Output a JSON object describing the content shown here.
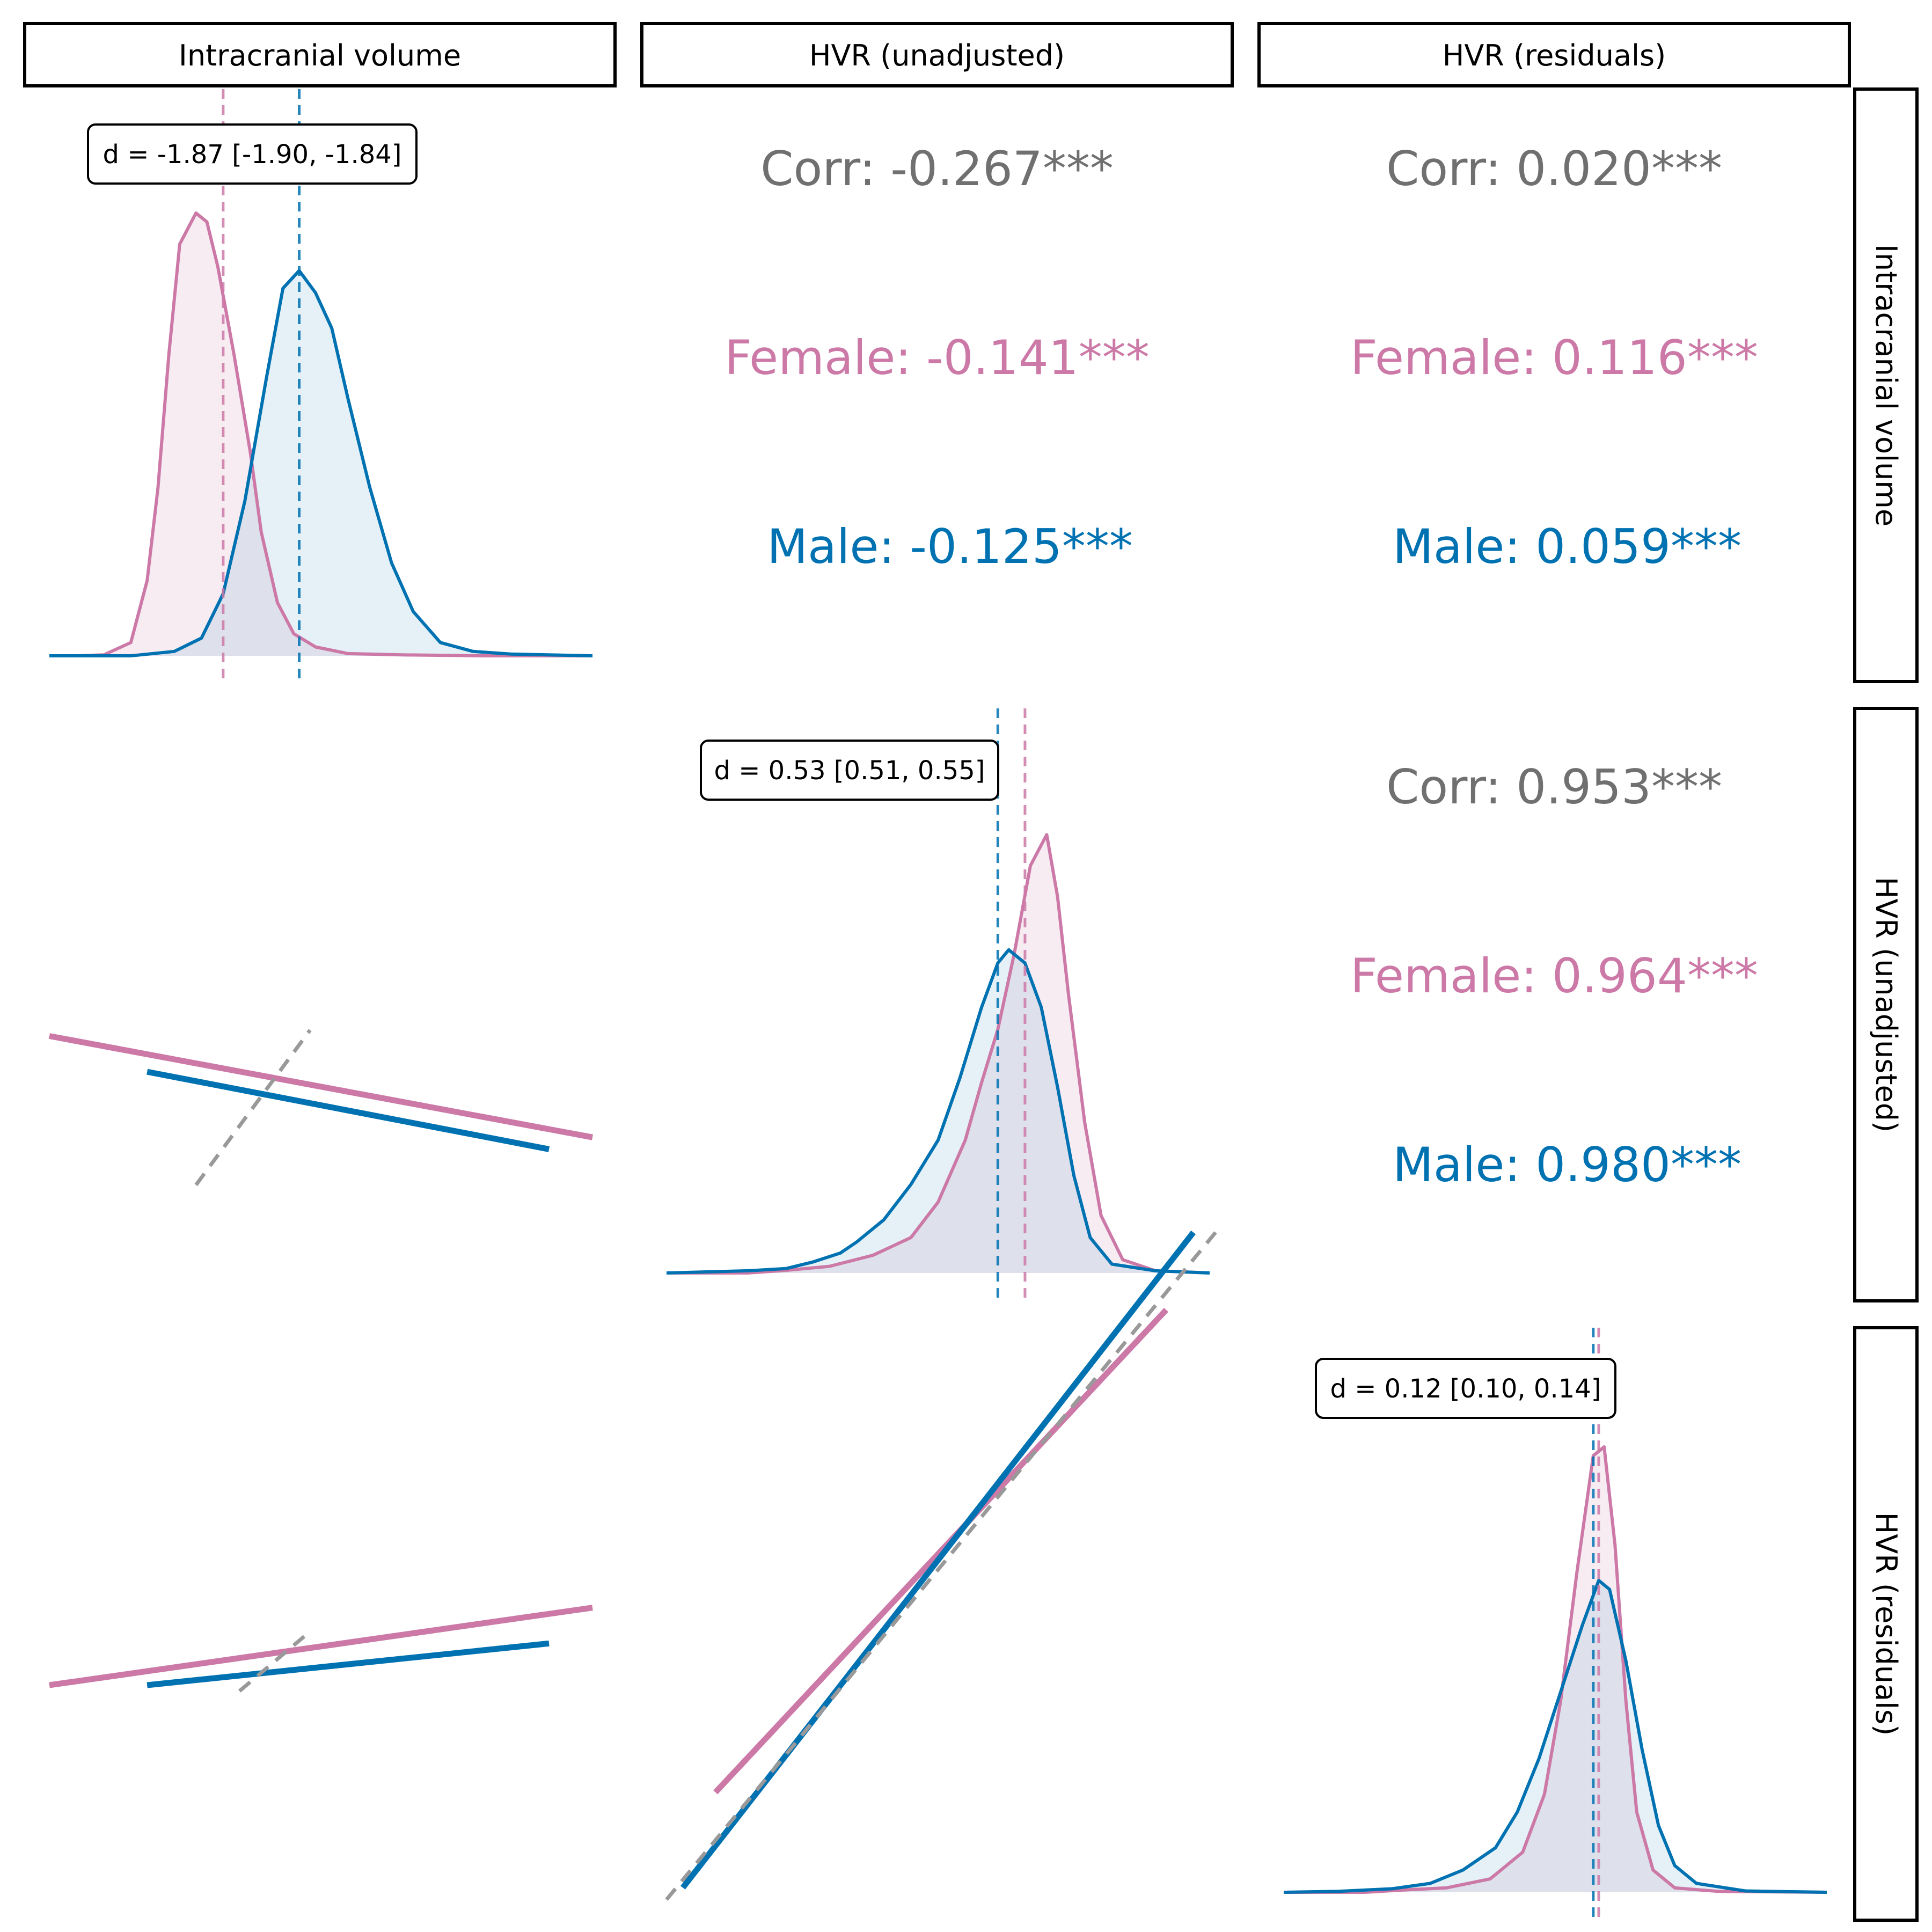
{
  "chart_data": {
    "type": "pair-plot",
    "variables": [
      "Intracranial volume",
      "HVR (unadjusted)",
      "HVR (residuals)"
    ],
    "row_labels": [
      "Intracranial volume",
      "HVR (unadjusted)",
      "HVR (residuals)"
    ],
    "groups": [
      {
        "name": "Female",
        "color": "#cc79a7"
      },
      {
        "name": "Male",
        "color": "#0072b2"
      }
    ],
    "overall_color": "#707070",
    "diagonal": [
      {
        "variable": "Intracranial volume",
        "cohens_d": "d = -1.87 [-1.90, -1.84]",
        "female_mean": 0.32,
        "male_mean": 0.46,
        "female_density": [
          [
            0.0,
            0
          ],
          [
            0.05,
            0.0
          ],
          [
            0.1,
            0.002
          ],
          [
            0.15,
            0.03
          ],
          [
            0.18,
            0.17
          ],
          [
            0.2,
            0.38
          ],
          [
            0.22,
            0.68
          ],
          [
            0.24,
            0.93
          ],
          [
            0.27,
            1.0
          ],
          [
            0.29,
            0.98
          ],
          [
            0.31,
            0.88
          ],
          [
            0.34,
            0.68
          ],
          [
            0.37,
            0.46
          ],
          [
            0.39,
            0.28
          ],
          [
            0.42,
            0.12
          ],
          [
            0.45,
            0.05
          ],
          [
            0.49,
            0.02
          ],
          [
            0.55,
            0.005
          ],
          [
            0.65,
            0.002
          ],
          [
            0.8,
            0.0
          ],
          [
            1.0,
            0
          ]
        ],
        "male_density": [
          [
            0.0,
            0
          ],
          [
            0.15,
            0.0
          ],
          [
            0.23,
            0.01
          ],
          [
            0.28,
            0.04
          ],
          [
            0.32,
            0.14
          ],
          [
            0.36,
            0.35
          ],
          [
            0.4,
            0.63
          ],
          [
            0.43,
            0.83
          ],
          [
            0.46,
            0.87
          ],
          [
            0.49,
            0.82
          ],
          [
            0.52,
            0.74
          ],
          [
            0.55,
            0.58
          ],
          [
            0.59,
            0.38
          ],
          [
            0.63,
            0.21
          ],
          [
            0.67,
            0.1
          ],
          [
            0.72,
            0.03
          ],
          [
            0.78,
            0.01
          ],
          [
            0.85,
            0.004
          ],
          [
            1.0,
            0
          ]
        ]
      },
      {
        "variable": "HVR (unadjusted)",
        "cohens_d": "d = 0.53 [0.51, 0.55]",
        "female_mean": 0.66,
        "male_mean": 0.61,
        "female_density": [
          [
            0.0,
            0
          ],
          [
            0.15,
            0.0
          ],
          [
            0.22,
            0.006
          ],
          [
            0.3,
            0.015
          ],
          [
            0.38,
            0.04
          ],
          [
            0.45,
            0.08
          ],
          [
            0.5,
            0.16
          ],
          [
            0.55,
            0.3
          ],
          [
            0.58,
            0.43
          ],
          [
            0.61,
            0.55
          ],
          [
            0.64,
            0.72
          ],
          [
            0.67,
            0.92
          ],
          [
            0.7,
            0.99
          ],
          [
            0.72,
            0.85
          ],
          [
            0.74,
            0.63
          ],
          [
            0.77,
            0.34
          ],
          [
            0.8,
            0.13
          ],
          [
            0.84,
            0.03
          ],
          [
            0.9,
            0.005
          ],
          [
            1.0,
            0
          ]
        ],
        "male_density": [
          [
            0.0,
            0
          ],
          [
            0.15,
            0.005
          ],
          [
            0.22,
            0.01
          ],
          [
            0.27,
            0.025
          ],
          [
            0.32,
            0.045
          ],
          [
            0.35,
            0.07
          ],
          [
            0.4,
            0.12
          ],
          [
            0.45,
            0.2
          ],
          [
            0.5,
            0.3
          ],
          [
            0.54,
            0.44
          ],
          [
            0.58,
            0.6
          ],
          [
            0.61,
            0.7
          ],
          [
            0.63,
            0.73
          ],
          [
            0.66,
            0.7
          ],
          [
            0.69,
            0.6
          ],
          [
            0.72,
            0.42
          ],
          [
            0.75,
            0.22
          ],
          [
            0.78,
            0.08
          ],
          [
            0.82,
            0.02
          ],
          [
            0.9,
            0.005
          ],
          [
            1.0,
            0
          ]
        ]
      },
      {
        "variable": "HVR (residuals)",
        "cohens_d": "d = 0.12 [0.10, 0.14]",
        "female_mean": 0.58,
        "male_mean": 0.57,
        "female_density": [
          [
            0.0,
            0
          ],
          [
            0.15,
            0.0
          ],
          [
            0.22,
            0.005
          ],
          [
            0.3,
            0.01
          ],
          [
            0.38,
            0.03
          ],
          [
            0.44,
            0.09
          ],
          [
            0.48,
            0.22
          ],
          [
            0.51,
            0.43
          ],
          [
            0.54,
            0.72
          ],
          [
            0.57,
            0.98
          ],
          [
            0.59,
            1.0
          ],
          [
            0.61,
            0.78
          ],
          [
            0.63,
            0.43
          ],
          [
            0.65,
            0.18
          ],
          [
            0.68,
            0.05
          ],
          [
            0.72,
            0.01
          ],
          [
            0.8,
            0.002
          ],
          [
            1.0,
            0
          ]
        ],
        "male_density": [
          [
            0.0,
            0
          ],
          [
            0.1,
            0.002
          ],
          [
            0.2,
            0.008
          ],
          [
            0.27,
            0.02
          ],
          [
            0.33,
            0.05
          ],
          [
            0.39,
            0.1
          ],
          [
            0.43,
            0.18
          ],
          [
            0.47,
            0.3
          ],
          [
            0.51,
            0.45
          ],
          [
            0.55,
            0.6
          ],
          [
            0.58,
            0.7
          ],
          [
            0.6,
            0.68
          ],
          [
            0.63,
            0.52
          ],
          [
            0.66,
            0.32
          ],
          [
            0.69,
            0.15
          ],
          [
            0.72,
            0.06
          ],
          [
            0.76,
            0.02
          ],
          [
            0.85,
            0.003
          ],
          [
            1.0,
            0
          ]
        ]
      }
    ],
    "upper": [
      {
        "row": "Intracranial volume",
        "col": "HVR (unadjusted)",
        "corr": "Corr: -0.267***",
        "female": "Female: -0.141***",
        "male": "Male: -0.125***"
      },
      {
        "row": "Intracranial volume",
        "col": "HVR (residuals)",
        "corr": "Corr: 0.020***",
        "female": "Female: 0.116***",
        "male": "Male: 0.059***"
      },
      {
        "row": "HVR (unadjusted)",
        "col": "HVR (residuals)",
        "corr": "Corr: 0.953***",
        "female": "Female: 0.964***",
        "male": "Male: 0.980***"
      }
    ],
    "lower": [
      {
        "row": "HVR (unadjusted)",
        "col": "Intracranial volume",
        "female_line": [
          [
            0.0,
            0.45
          ],
          [
            1.0,
            0.28
          ]
        ],
        "male_line": [
          [
            0.18,
            0.39
          ],
          [
            0.92,
            0.26
          ]
        ],
        "overall_line": [
          [
            0.27,
            0.2
          ],
          [
            0.48,
            0.46
          ]
        ]
      },
      {
        "row": "HVR (residuals)",
        "col": "Intracranial volume",
        "female_line": [
          [
            0.0,
            0.4
          ],
          [
            1.0,
            0.53
          ]
        ],
        "male_line": [
          [
            0.18,
            0.4
          ],
          [
            0.92,
            0.47
          ]
        ],
        "overall_line": [
          [
            0.35,
            0.39
          ],
          [
            0.48,
            0.49
          ]
        ]
      },
      {
        "row": "HVR (residuals)",
        "col": "HVR (unadjusted)",
        "female_line": [
          [
            0.09,
            0.22
          ],
          [
            0.92,
            1.03
          ]
        ],
        "male_line": [
          [
            0.03,
            0.06
          ],
          [
            0.97,
            1.16
          ]
        ],
        "overall_line": [
          [
            0.0,
            0.04
          ],
          [
            1.02,
            1.17
          ]
        ]
      }
    ]
  }
}
